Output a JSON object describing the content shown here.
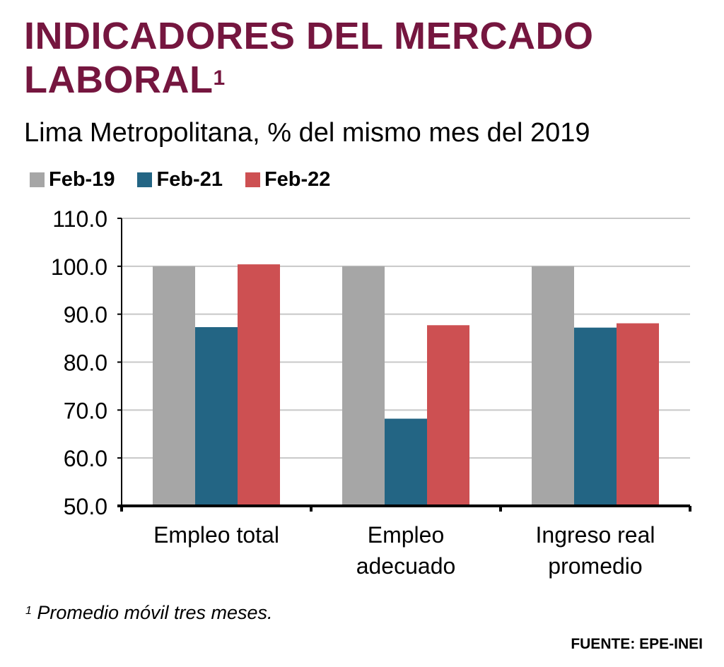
{
  "header": {
    "title": "INDICADORES DEL MERCADO LABORAL",
    "title_marker": "1",
    "subtitle": "Lima Metropolitana, % del mismo mes del 2019"
  },
  "footer": {
    "footnote_marker": "1",
    "footnote": " Promedio móvil tres meses.",
    "source": "FUENTE: EPE-INEI"
  },
  "colors": {
    "title": "#75163f",
    "grid": "#c8c8c8",
    "axis": "#000000"
  },
  "chart_data": {
    "type": "bar",
    "title": "INDICADORES DEL MERCADO LABORAL",
    "subtitle": "Lima Metropolitana, % del mismo mes del 2019",
    "categories": [
      [
        "Empleo total"
      ],
      [
        "Empleo",
        "adecuado"
      ],
      [
        "Ingreso real",
        "promedio"
      ]
    ],
    "series": [
      {
        "name": "Feb-19",
        "color": "#a6a6a6",
        "values": [
          100.0,
          100.0,
          100.0
        ]
      },
      {
        "name": "Feb-21",
        "color": "#236584",
        "values": [
          87.3,
          68.2,
          87.2
        ]
      },
      {
        "name": "Feb-22",
        "color": "#cd5052",
        "values": [
          100.4,
          87.7,
          88.1
        ]
      }
    ],
    "xlabel": "",
    "ylabel": "",
    "ylim": [
      50,
      110
    ],
    "yticks": [
      "50.0",
      "60.0",
      "70.0",
      "80.0",
      "90.0",
      "100.0",
      "110.0"
    ],
    "grid": true,
    "legend_position": "top-left"
  }
}
